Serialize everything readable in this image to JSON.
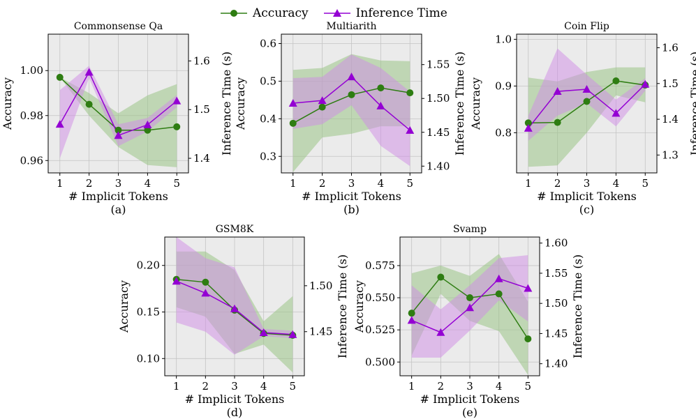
{
  "legend": {
    "accuracy_label": "Accuracy",
    "time_label": "Inference Time"
  },
  "colors": {
    "accuracy": "#2e7d12",
    "accuracy_band": "#9ac486",
    "time": "#9400d3",
    "time_band": "#d08be6",
    "panel_bg": "#ebebeb",
    "grid": "#c4c4c4"
  },
  "chart_data": [
    {
      "id": "a",
      "type": "line",
      "title": "Commonsense Qa",
      "caption": "(a)",
      "xlabel": "# Implicit Tokens",
      "ylabel_left": "Accuracy",
      "ylabel_right": "Inference Time (s)",
      "x": [
        1,
        2,
        3,
        4,
        5
      ],
      "xlim": [
        0.6,
        5.4
      ],
      "ylim_left": [
        0.9545,
        1.0162
      ],
      "ylim_right": [
        1.37,
        1.655
      ],
      "yticks_left": [
        0.96,
        0.98,
        1.0
      ],
      "ytick_labels_left": [
        "0.96",
        "0.98",
        "1.00"
      ],
      "yticks_right": [
        1.4,
        1.5,
        1.6
      ],
      "ytick_labels_right": [
        "1.4",
        "1.5",
        "1.6"
      ],
      "series": [
        {
          "name": "Accuracy",
          "axis": "left",
          "values": [
            0.997,
            0.985,
            0.9735,
            0.9735,
            0.975
          ],
          "lower": [
            0.997,
            0.98,
            0.966,
            0.958,
            0.957
          ],
          "upper": [
            0.997,
            0.99,
            0.981,
            0.989,
            0.994
          ]
        },
        {
          "name": "Inference Time",
          "axis": "right",
          "values": [
            1.47,
            1.577,
            1.447,
            1.469,
            1.518
          ],
          "lower": [
            1.4,
            1.565,
            1.425,
            1.455,
            1.505
          ],
          "upper": [
            1.54,
            1.59,
            1.47,
            1.483,
            1.53
          ]
        }
      ]
    },
    {
      "id": "b",
      "type": "line",
      "title": "Multiarith",
      "caption": "(b)",
      "xlabel": "# Implicit Tokens",
      "ylabel_left": "Accuracy",
      "ylabel_right": "Inference Time (s)",
      "x": [
        1,
        2,
        3,
        4,
        5
      ],
      "xlim": [
        0.6,
        5.4
      ],
      "ylim_left": [
        0.256,
        0.625
      ],
      "ylim_right": [
        1.39,
        1.595
      ],
      "yticks_left": [
        0.3,
        0.4,
        0.5,
        0.6
      ],
      "ytick_labels_left": [
        "0.3",
        "0.4",
        "0.5",
        "0.6"
      ],
      "yticks_right": [
        1.4,
        1.45,
        1.5,
        1.55
      ],
      "ytick_labels_right": [
        "1.40",
        "1.45",
        "1.50",
        "1.55"
      ],
      "series": [
        {
          "name": "Accuracy",
          "axis": "left",
          "values": [
            0.388,
            0.431,
            0.464,
            0.482,
            0.469
          ],
          "lower": [
            0.258,
            0.35,
            0.36,
            0.38,
            0.38
          ],
          "upper": [
            0.53,
            0.535,
            0.572,
            0.555,
            0.553
          ]
        },
        {
          "name": "Inference Time",
          "axis": "right",
          "values": [
            1.493,
            1.497,
            1.532,
            1.489,
            1.453
          ],
          "lower": [
            1.455,
            1.462,
            1.49,
            1.43,
            1.4
          ],
          "upper": [
            1.53,
            1.532,
            1.565,
            1.545,
            1.51
          ]
        }
      ]
    },
    {
      "id": "c",
      "type": "line",
      "title": "Coin Flip",
      "caption": "(c)",
      "xlabel": "# Implicit Tokens",
      "ylabel_left": "Accuracy",
      "ylabel_right": "Inference Time (s)",
      "x": [
        1,
        2,
        3,
        4,
        5
      ],
      "xlim": [
        0.6,
        5.4
      ],
      "ylim_left": [
        0.714,
        1.011
      ],
      "ylim_right": [
        1.25,
        1.638
      ],
      "yticks_left": [
        0.8,
        0.9,
        1.0
      ],
      "ytick_labels_left": [
        "0.8",
        "0.9",
        "1.0"
      ],
      "yticks_right": [
        1.3,
        1.4,
        1.5,
        1.6
      ],
      "ytick_labels_right": [
        "1.3",
        "1.4",
        "1.5",
        "1.6"
      ],
      "series": [
        {
          "name": "Accuracy",
          "axis": "left",
          "values": [
            0.821,
            0.822,
            0.867,
            0.911,
            0.902
          ],
          "lower": [
            0.727,
            0.73,
            0.8,
            0.88,
            0.865
          ],
          "upper": [
            0.918,
            0.91,
            0.93,
            0.94,
            0.94
          ]
        },
        {
          "name": "Inference Time",
          "axis": "right",
          "values": [
            1.375,
            1.478,
            1.484,
            1.417,
            1.498
          ],
          "lower": [
            1.34,
            1.41,
            1.445,
            1.38,
            1.48
          ],
          "upper": [
            1.41,
            1.598,
            1.525,
            1.455,
            1.515
          ]
        }
      ]
    },
    {
      "id": "d",
      "type": "line",
      "title": "GSM8K",
      "caption": "(d)",
      "xlabel": "# Implicit Tokens",
      "ylabel_left": "Accuracy",
      "ylabel_right": "Inference Time (s)",
      "x": [
        1,
        2,
        3,
        4,
        5
      ],
      "xlim": [
        0.6,
        5.4
      ],
      "ylim_left": [
        0.0815,
        0.2305
      ],
      "ylim_right": [
        1.402,
        1.553
      ],
      "yticks_left": [
        0.1,
        0.15,
        0.2
      ],
      "ytick_labels_left": [
        "0.10",
        "0.15",
        "0.20"
      ],
      "yticks_right": [
        1.45,
        1.5
      ],
      "ytick_labels_right": [
        "1.45",
        "1.50"
      ],
      "series": [
        {
          "name": "Accuracy",
          "axis": "left",
          "values": [
            0.185,
            0.182,
            0.152,
            0.127,
            0.125
          ],
          "lower": [
            0.155,
            0.145,
            0.105,
            0.115,
            0.085
          ],
          "upper": [
            0.215,
            0.215,
            0.195,
            0.14,
            0.167
          ]
        },
        {
          "name": "Inference Time",
          "axis": "right",
          "values": [
            1.505,
            1.492,
            1.475,
            1.449,
            1.447
          ],
          "lower": [
            1.46,
            1.45,
            1.425,
            1.445,
            1.443
          ],
          "upper": [
            1.553,
            1.53,
            1.52,
            1.453,
            1.451
          ]
        }
      ]
    },
    {
      "id": "e",
      "type": "line",
      "title": "Svamp",
      "caption": "(e)",
      "xlabel": "# Implicit Tokens",
      "ylabel_left": "Accuracy",
      "ylabel_right": "Inference Time (s)",
      "x": [
        1,
        2,
        3,
        4,
        5
      ],
      "xlim": [
        0.6,
        5.4
      ],
      "ylim_left": [
        0.4893,
        0.5972
      ],
      "ylim_right": [
        1.38,
        1.61
      ],
      "yticks_left": [
        0.5,
        0.525,
        0.55,
        0.575
      ],
      "ytick_labels_left": [
        "0.500",
        "0.525",
        "0.550",
        "0.575"
      ],
      "yticks_right": [
        1.4,
        1.45,
        1.5,
        1.55,
        1.6
      ],
      "ytick_labels_right": [
        "1.40",
        "1.45",
        "1.50",
        "1.55",
        "1.60"
      ],
      "series": [
        {
          "name": "Accuracy",
          "axis": "left",
          "values": [
            0.538,
            0.566,
            0.55,
            0.553,
            0.518
          ],
          "lower": [
            0.505,
            0.553,
            0.532,
            0.524,
            0.49
          ],
          "upper": [
            0.569,
            0.575,
            0.567,
            0.584,
            0.547
          ]
        },
        {
          "name": "Inference Time",
          "axis": "right",
          "values": [
            1.472,
            1.452,
            1.493,
            1.541,
            1.525
          ],
          "lower": [
            1.41,
            1.41,
            1.455,
            1.505,
            1.47
          ],
          "upper": [
            1.53,
            1.49,
            1.53,
            1.575,
            1.58
          ]
        }
      ]
    }
  ]
}
